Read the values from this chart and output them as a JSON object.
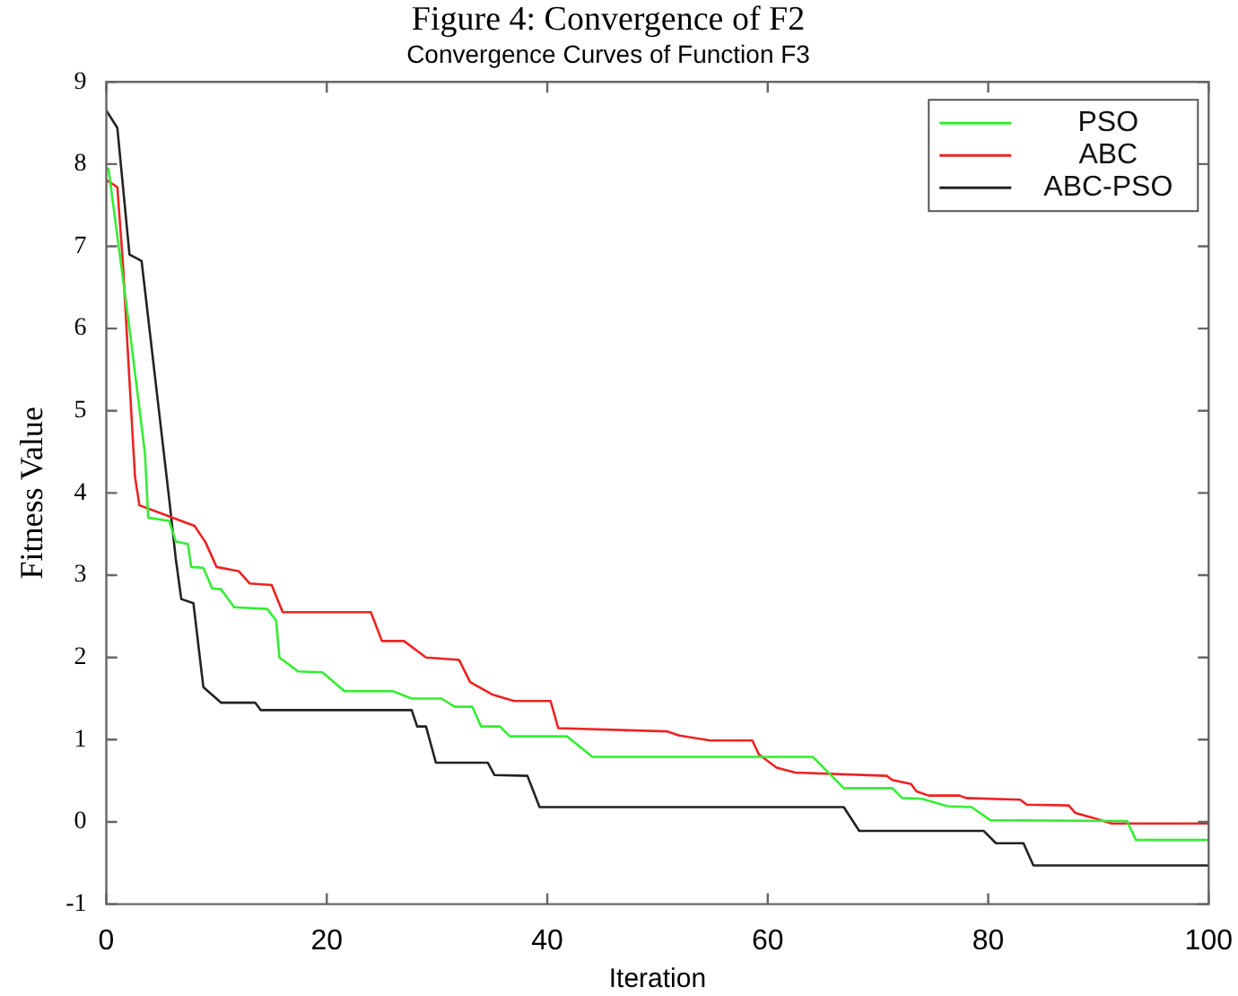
{
  "chart_data": {
    "type": "line",
    "title": "Figure 4: Convergence of F2",
    "subtitle": "Convergence Curves of Function F3",
    "xlabel": "Iteration",
    "ylabel": "Fitness Value",
    "xlim": [
      0,
      100
    ],
    "xticks": [
      0,
      20,
      40,
      60,
      80,
      100
    ],
    "ylim": [
      -1,
      9
    ],
    "yticks": [
      -1,
      0,
      1,
      2,
      3,
      4,
      5,
      6,
      7,
      8,
      9
    ],
    "legend": "top right",
    "marker": "none",
    "line_style": "solid",
    "series": [
      {
        "name": "PSO",
        "color": "#33ee33",
        "x": [
          0,
          0.2,
          2.1,
          3.5,
          3.8,
          5.7,
          6.3,
          7.4,
          7.7,
          8.8,
          9.6,
          10.4,
          11.6,
          14.6,
          15.4,
          15.7,
          17.4,
          19.6,
          21.6,
          26,
          27.7,
          30.4,
          31.6,
          33.2,
          34,
          35.7,
          36.6,
          41.8,
          44.1,
          64.1,
          66.9,
          71.3,
          72.2,
          74,
          76.3,
          78.5,
          80.2,
          92.6,
          93.4,
          100
        ],
        "values": [
          7.95,
          7.94,
          6.0,
          4.49,
          3.7,
          3.66,
          3.41,
          3.38,
          3.1,
          3.09,
          2.84,
          2.83,
          2.61,
          2.59,
          2.45,
          2.0,
          1.83,
          1.82,
          1.59,
          1.59,
          1.5,
          1.5,
          1.4,
          1.4,
          1.16,
          1.16,
          1.04,
          1.04,
          0.79,
          0.79,
          0.41,
          0.41,
          0.29,
          0.28,
          0.19,
          0.18,
          0.02,
          0.01,
          -0.22,
          -0.22
        ]
      },
      {
        "name": "ABC",
        "color": "#ee2222",
        "x": [
          0,
          0.2,
          1,
          1.5,
          2,
          2.6,
          3,
          5,
          7,
          8,
          9,
          10,
          12,
          13,
          15,
          16,
          24,
          25,
          27,
          29,
          32,
          33,
          35,
          37,
          40.3,
          41,
          50.9,
          52,
          54.8,
          58.6,
          59.2,
          60.8,
          62.5,
          70.8,
          71.3,
          73,
          73.5,
          74.6,
          77.4,
          78,
          82.9,
          83.5,
          87.3,
          87.9,
          89.5,
          91.2,
          100
        ],
        "values": [
          7.8,
          7.79,
          7.72,
          6.8,
          5.6,
          4.2,
          3.85,
          3.75,
          3.65,
          3.6,
          3.4,
          3.1,
          3.05,
          2.9,
          2.88,
          2.55,
          2.55,
          2.2,
          2.2,
          2.0,
          1.97,
          1.7,
          1.55,
          1.47,
          1.47,
          1.14,
          1.1,
          1.05,
          0.99,
          0.99,
          0.82,
          0.66,
          0.6,
          0.56,
          0.51,
          0.46,
          0.37,
          0.32,
          0.32,
          0.29,
          0.27,
          0.21,
          0.2,
          0.11,
          0.05,
          -0.02,
          -0.02
        ]
      },
      {
        "name": "ABC-PSO",
        "color": "#222222",
        "x": [
          0,
          1,
          2.1,
          3.2,
          4.6,
          5.7,
          6.3,
          6.8,
          7.9,
          8.8,
          10.4,
          13.5,
          14,
          27.7,
          28.2,
          29,
          29.9,
          34.6,
          35.2,
          38.2,
          39.3,
          66.9,
          68.3,
          79.6,
          80.7,
          83.2,
          84.1,
          100
        ],
        "values": [
          8.65,
          8.44,
          6.9,
          6.82,
          5.2,
          3.93,
          3.2,
          2.71,
          2.66,
          1.64,
          1.45,
          1.45,
          1.36,
          1.36,
          1.16,
          1.16,
          0.72,
          0.72,
          0.57,
          0.56,
          0.18,
          0.18,
          -0.11,
          -0.11,
          -0.26,
          -0.26,
          -0.53,
          -0.53
        ]
      }
    ]
  }
}
